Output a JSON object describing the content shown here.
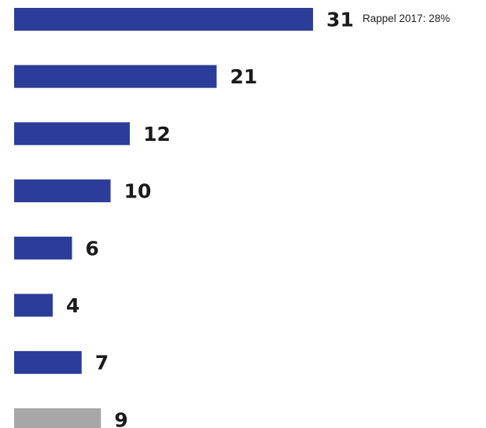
{
  "chart_data": {
    "type": "bar",
    "orientation": "horizontal",
    "values": [
      31,
      21,
      12,
      10,
      6,
      4,
      7,
      9
    ],
    "bar_colors": [
      "#2b3d98",
      "#2b3d98",
      "#2b3d98",
      "#2b3d98",
      "#2b3d98",
      "#2b3d98",
      "#2b3d98",
      "#a7a7a7"
    ],
    "annotation": "Rappel 2017: 28%",
    "xlim": [
      0,
      31
    ]
  }
}
